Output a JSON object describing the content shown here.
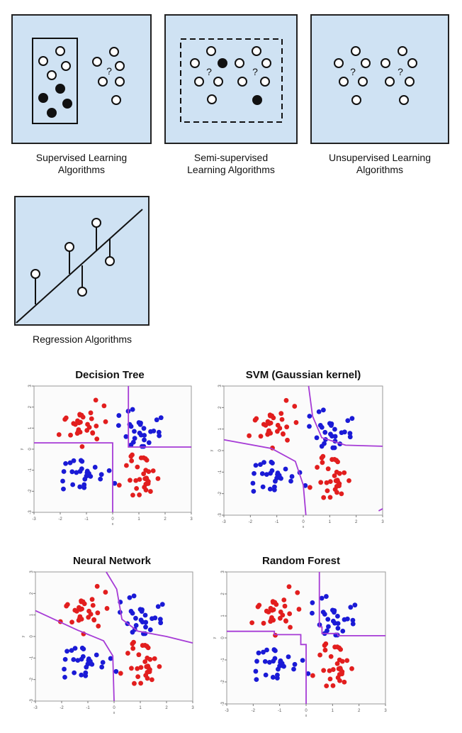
{
  "categories": {
    "supervised": {
      "caption_line1": "Supervised Learning",
      "caption_line2": "Algorithms"
    },
    "semi_supervised": {
      "caption_line1": "Semi-supervised",
      "caption_line2": "Learning Algorithms"
    },
    "unsupervised": {
      "caption_line1": "Unsupervised Learning",
      "caption_line2": "Algorithms"
    },
    "regression": {
      "caption": "Regression Algorithms"
    }
  },
  "unknown_marker": "?",
  "colors": {
    "panel_bg": "#cfe2f3",
    "class_red": "#e21e1e",
    "class_blue": "#1a1ad6",
    "boundary": "#a63bd6"
  },
  "plots": [
    {
      "id": "decision-tree",
      "title": "Decision Tree",
      "boundary": "axis-aligned"
    },
    {
      "id": "svm",
      "title": "SVM (Gaussian kernel)",
      "boundary": "smooth-curve"
    },
    {
      "id": "neural-network",
      "title": "Neural Network",
      "boundary": "smooth-curve"
    },
    {
      "id": "random-forest",
      "title": "Random Forest",
      "boundary": "stepped"
    }
  ],
  "axis": {
    "x_ticks": [
      "-3",
      "-2",
      "-1",
      "0",
      "1",
      "2",
      "3"
    ],
    "y_ticks": [
      "3",
      "2",
      "1",
      "0",
      "-1",
      "-2",
      "-3"
    ],
    "x_label": "x",
    "y_label": "y"
  }
}
